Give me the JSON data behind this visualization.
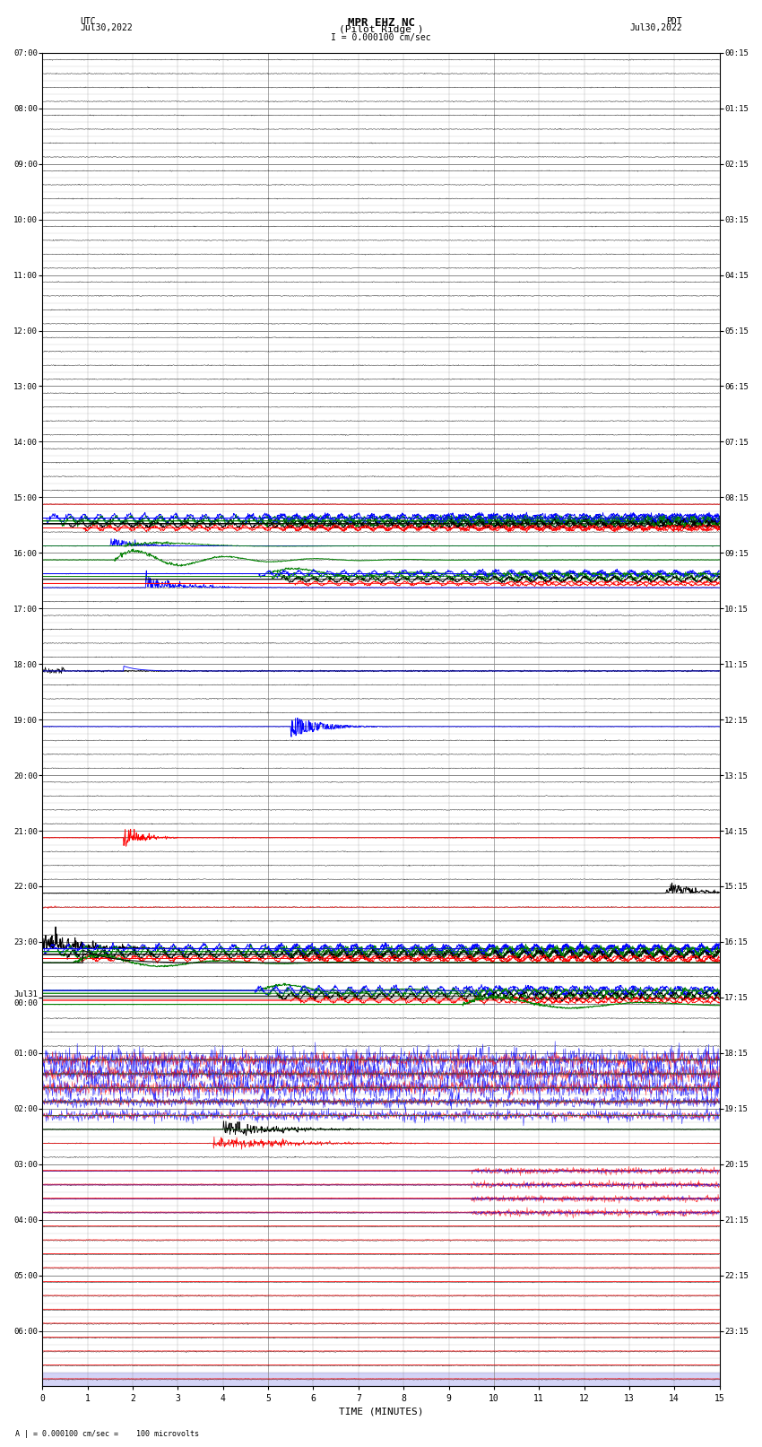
{
  "title_line1": "MPR EHZ NC",
  "title_line2": "(Pilot Ridge )",
  "title_scale": "I = 0.000100 cm/sec",
  "label_left_top": "UTC",
  "label_left_date": "Jul30,2022",
  "label_right_top": "PDT",
  "label_right_date": "Jul30,2022",
  "bottom_label": "TIME (MINUTES)",
  "bottom_note": "A | = 0.000100 cm/sec =    100 microvolts",
  "utc_times_major": [
    "07:00",
    "08:00",
    "09:00",
    "10:00",
    "11:00",
    "12:00",
    "13:00",
    "14:00",
    "15:00",
    "16:00",
    "17:00",
    "18:00",
    "19:00",
    "20:00",
    "21:00",
    "22:00",
    "23:00",
    "Jul31\n00:00",
    "01:00",
    "02:00",
    "03:00",
    "04:00",
    "05:00",
    "06:00"
  ],
  "pdt_times_major": [
    "00:15",
    "01:15",
    "02:15",
    "03:15",
    "04:15",
    "05:15",
    "06:15",
    "07:15",
    "08:15",
    "09:15",
    "10:15",
    "11:15",
    "12:15",
    "13:15",
    "14:15",
    "15:15",
    "16:15",
    "17:15",
    "18:15",
    "19:15",
    "20:15",
    "21:15",
    "22:15",
    "23:15"
  ],
  "n_rows": 96,
  "n_cols": 15,
  "bg_color": "#ffffff",
  "grid_color": "#888888",
  "thin_grid_color": "#cccccc"
}
